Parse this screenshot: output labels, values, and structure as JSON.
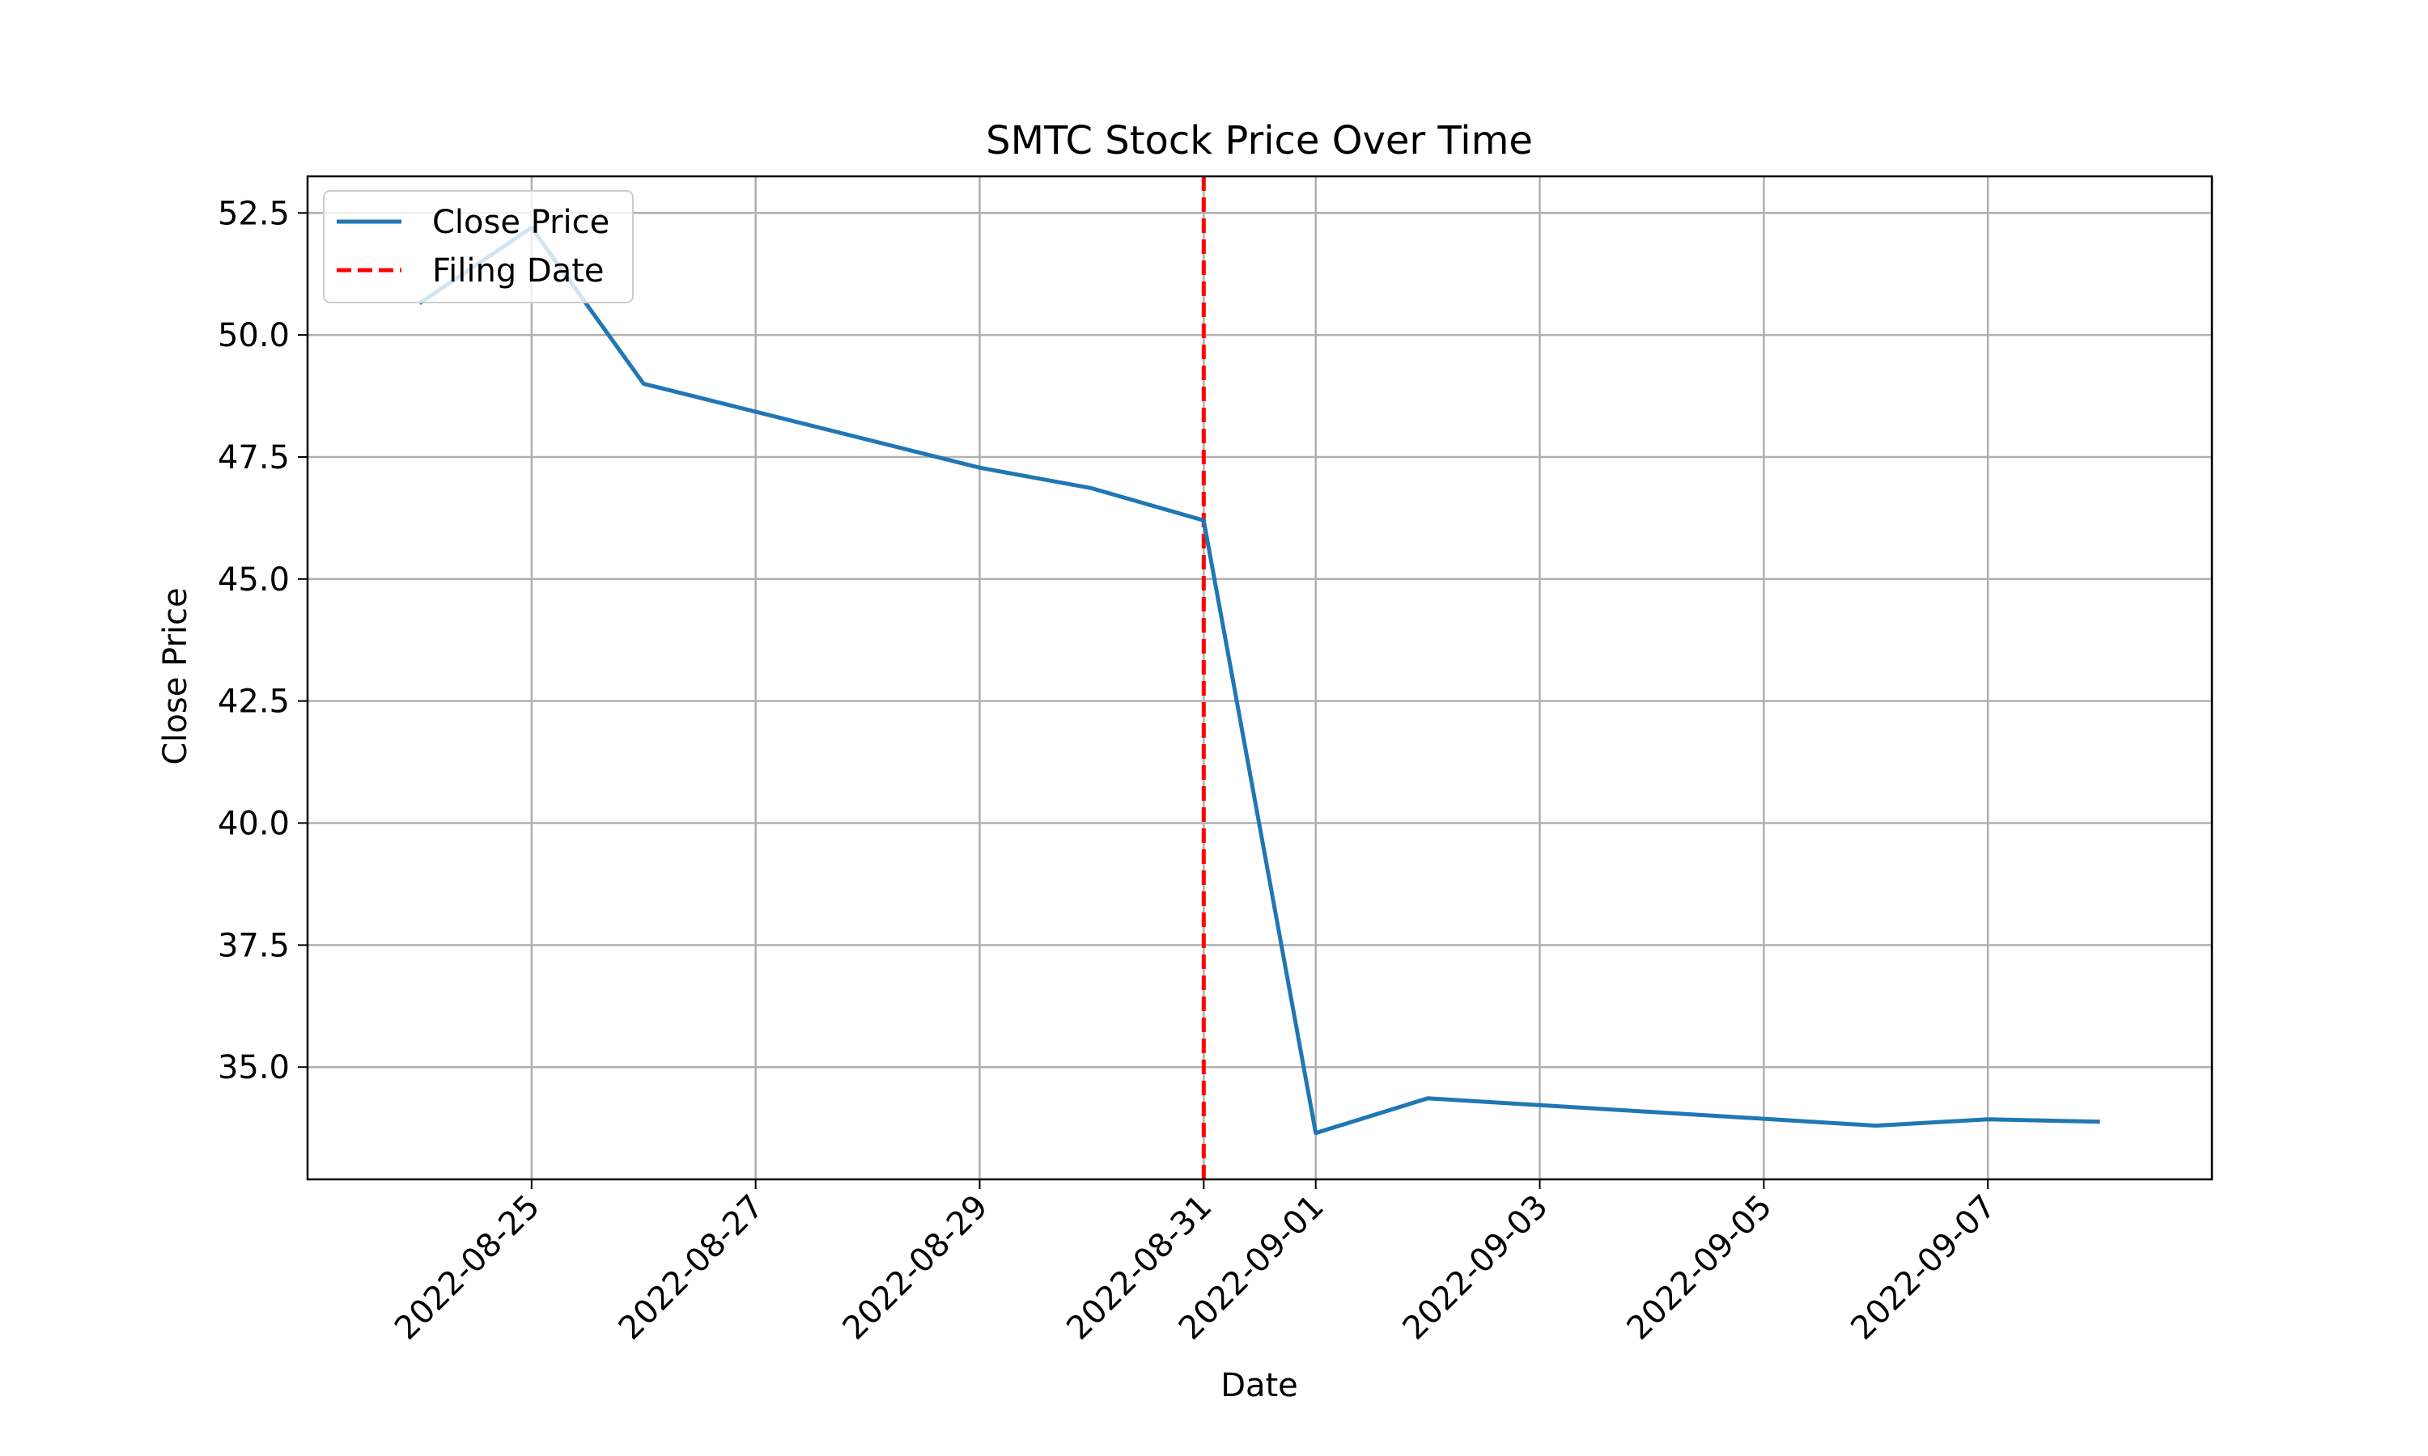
{
  "chart_data": {
    "type": "line",
    "title": "SMTC Stock Price Over Time",
    "xlabel": "Date",
    "ylabel": "Close Price",
    "x_ticks": [
      "2022-08-25",
      "2022-08-27",
      "2022-08-29",
      "2022-08-31",
      "2022-09-01",
      "2022-09-03",
      "2022-09-05",
      "2022-09-07"
    ],
    "y_ticks": [
      "35.0",
      "37.5",
      "40.0",
      "42.5",
      "45.0",
      "47.5",
      "50.0",
      "52.5"
    ],
    "xlim": [
      "2022-08-23",
      "2022-09-09"
    ],
    "ylim": [
      32.7,
      53.25
    ],
    "grid": true,
    "legend_position": "top-left",
    "series": [
      {
        "name": "Close Price",
        "color": "#1f77b4",
        "style": "solid",
        "points": [
          {
            "x": "2022-08-24",
            "y": 50.65
          },
          {
            "x": "2022-08-25",
            "y": 52.2
          },
          {
            "x": "2022-08-26",
            "y": 49.0
          },
          {
            "x": "2022-08-29",
            "y": 47.28
          },
          {
            "x": "2022-08-30",
            "y": 46.86
          },
          {
            "x": "2022-08-31",
            "y": 46.2
          },
          {
            "x": "2022-09-01",
            "y": 33.65
          },
          {
            "x": "2022-09-02",
            "y": 34.36
          },
          {
            "x": "2022-09-06",
            "y": 33.8
          },
          {
            "x": "2022-09-07",
            "y": 33.93
          },
          {
            "x": "2022-09-08",
            "y": 33.88
          }
        ]
      }
    ],
    "vlines": [
      {
        "name": "Filing Date",
        "x": "2022-08-31",
        "color": "#ff0000",
        "style": "dashed"
      }
    ]
  }
}
